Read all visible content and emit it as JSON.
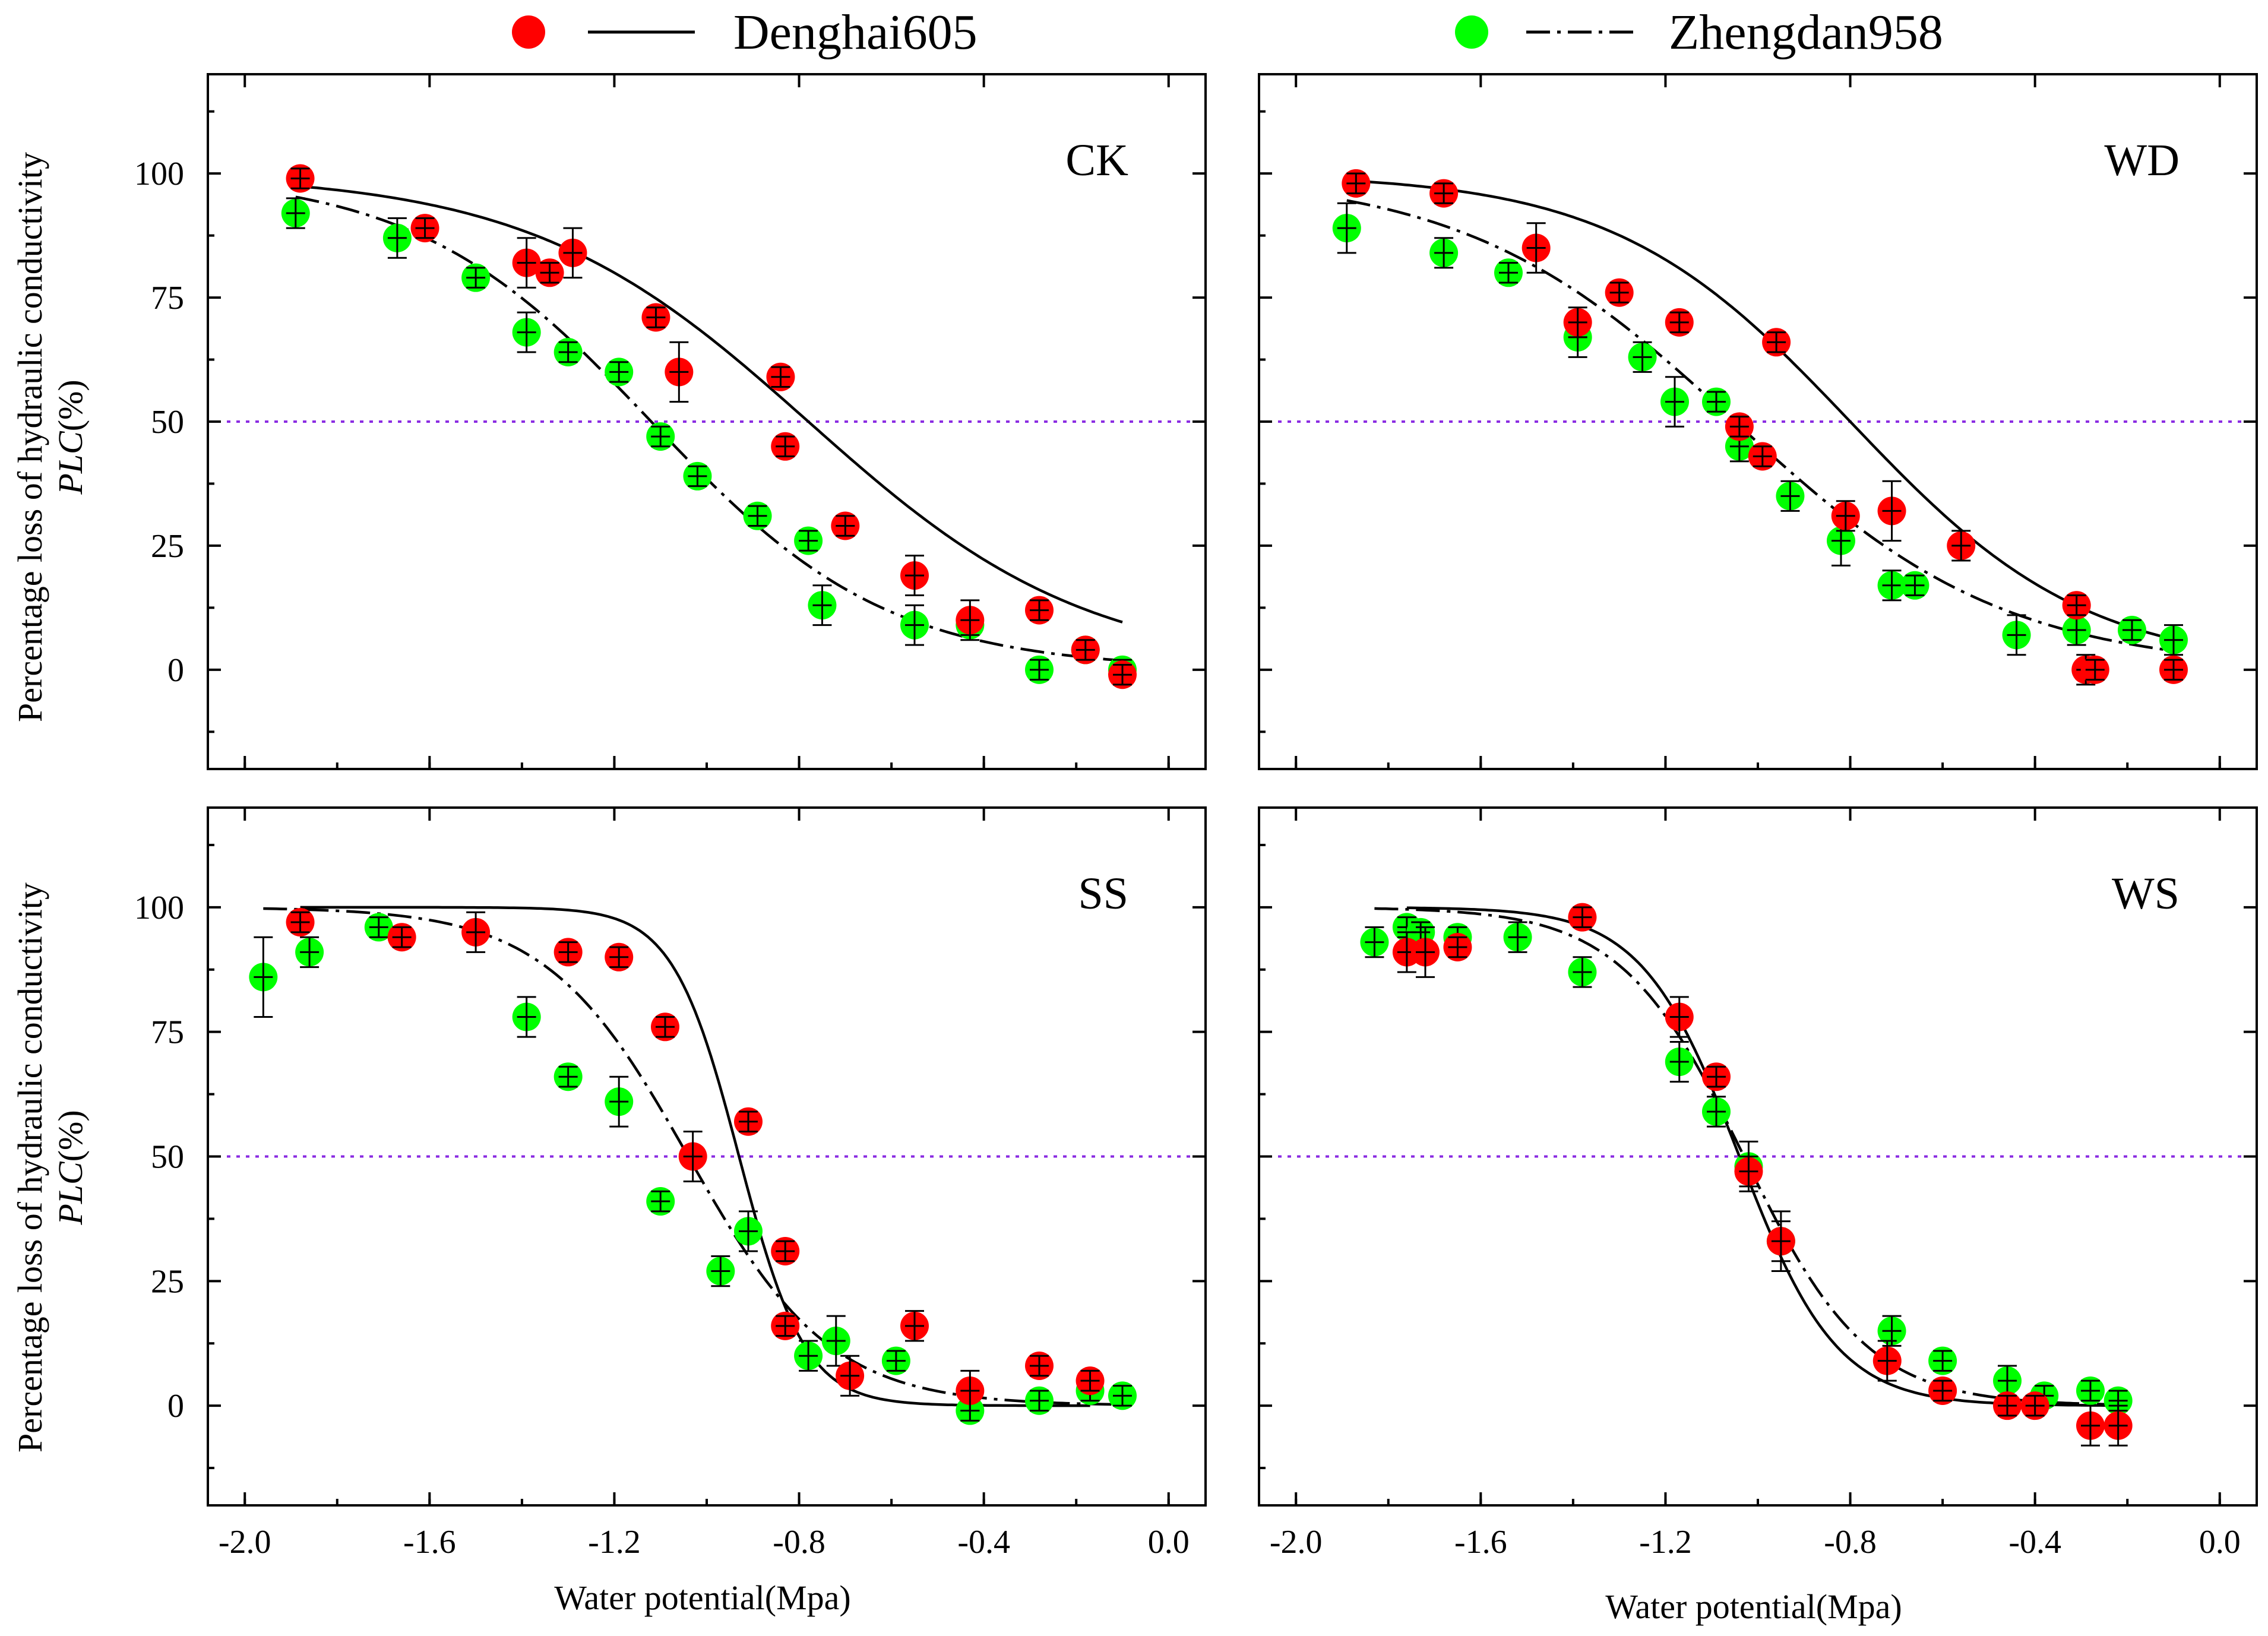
{
  "legend": {
    "series": [
      {
        "name": "Denghai605",
        "color": "#ff0000",
        "line": "solid"
      },
      {
        "name": "Zhengdan958",
        "color": "#00ff00",
        "line": "dashdot"
      }
    ]
  },
  "axes": {
    "xlabel": "Water potential(Mpa)",
    "ylabel": "Percentage loss of hydraulic conductivity",
    "ylabel_italic": "PLC",
    "ylabel_unit": "(%)"
  },
  "chart_data": [
    {
      "type": "scatter",
      "title": "CK",
      "xlim": [
        -2.08,
        0.08
      ],
      "ylim": [
        -20,
        120
      ],
      "xticks": [
        "-2.0",
        "-1.6",
        "-1.2",
        "-0.8",
        "-0.4",
        "0.0"
      ],
      "yticks": [
        "0",
        "25",
        "50",
        "75",
        "100"
      ],
      "reference_line_y": 50,
      "series": [
        {
          "name": "Denghai605",
          "color": "#ff0000",
          "fit": {
            "model": "sigmoid",
            "p50": -0.78,
            "a": 3.3
          },
          "points": [
            {
              "x": -1.88,
              "y": 99,
              "err": 2
            },
            {
              "x": -1.61,
              "y": 89,
              "err": 2
            },
            {
              "x": -1.39,
              "y": 82,
              "err": 5
            },
            {
              "x": -1.34,
              "y": 80,
              "err": 2
            },
            {
              "x": -1.29,
              "y": 84,
              "err": 5
            },
            {
              "x": -1.11,
              "y": 71,
              "err": 2
            },
            {
              "x": -1.06,
              "y": 60,
              "err": 6
            },
            {
              "x": -0.84,
              "y": 59,
              "err": 2
            },
            {
              "x": -0.83,
              "y": 45,
              "err": 2
            },
            {
              "x": -0.7,
              "y": 29,
              "err": 2
            },
            {
              "x": -0.55,
              "y": 19,
              "err": 4
            },
            {
              "x": -0.43,
              "y": 10,
              "err": 4
            },
            {
              "x": -0.28,
              "y": 12,
              "err": 2
            },
            {
              "x": -0.18,
              "y": 4,
              "err": 2
            },
            {
              "x": -0.1,
              "y": -1,
              "err": 2
            }
          ]
        },
        {
          "name": "Zhengdan958",
          "color": "#00ff00",
          "fit": {
            "model": "sigmoid",
            "p50": -1.12,
            "a": 3.9
          },
          "points": [
            {
              "x": -1.89,
              "y": 92,
              "err": 3
            },
            {
              "x": -1.67,
              "y": 87,
              "err": 4
            },
            {
              "x": -1.5,
              "y": 79,
              "err": 2
            },
            {
              "x": -1.39,
              "y": 68,
              "err": 4
            },
            {
              "x": -1.3,
              "y": 64,
              "err": 2
            },
            {
              "x": -1.19,
              "y": 60,
              "err": 2
            },
            {
              "x": -1.1,
              "y": 47,
              "err": 2
            },
            {
              "x": -1.02,
              "y": 39,
              "err": 2
            },
            {
              "x": -0.89,
              "y": 31,
              "err": 2
            },
            {
              "x": -0.78,
              "y": 26,
              "err": 2
            },
            {
              "x": -0.75,
              "y": 13,
              "err": 4
            },
            {
              "x": -0.55,
              "y": 9,
              "err": 4
            },
            {
              "x": -0.43,
              "y": 9,
              "err": 2
            },
            {
              "x": -0.28,
              "y": 0,
              "err": 2
            },
            {
              "x": -0.18,
              "y": 4,
              "err": 2
            },
            {
              "x": -0.1,
              "y": 0,
              "err": 2
            }
          ]
        }
      ]
    },
    {
      "type": "scatter",
      "title": "WD",
      "xlim": [
        -2.08,
        0.08
      ],
      "ylim": [
        -20,
        120
      ],
      "xticks": [
        "-2.0",
        "-1.6",
        "-1.2",
        "-0.8",
        "-0.4",
        "0.0"
      ],
      "yticks": [
        "0",
        "25",
        "50",
        "75",
        "100"
      ],
      "reference_line_y": 50,
      "series": [
        {
          "name": "Denghai605",
          "color": "#ff0000",
          "fit": {
            "model": "sigmoid",
            "p50": -0.8,
            "a": 3.9
          },
          "points": [
            {
              "x": -1.87,
              "y": 98,
              "err": 2
            },
            {
              "x": -1.68,
              "y": 96,
              "err": 2
            },
            {
              "x": -1.48,
              "y": 85,
              "err": 5
            },
            {
              "x": -1.39,
              "y": 70,
              "err": 3
            },
            {
              "x": -1.3,
              "y": 76,
              "err": 2
            },
            {
              "x": -1.17,
              "y": 70,
              "err": 2
            },
            {
              "x": -1.04,
              "y": 49,
              "err": 2
            },
            {
              "x": -0.99,
              "y": 43,
              "err": 2
            },
            {
              "x": -0.96,
              "y": 66,
              "err": 2
            },
            {
              "x": -0.81,
              "y": 31,
              "err": 3
            },
            {
              "x": -0.71,
              "y": 32,
              "err": 6
            },
            {
              "x": -0.56,
              "y": 25,
              "err": 3
            },
            {
              "x": -0.31,
              "y": 13,
              "err": 2
            },
            {
              "x": -0.29,
              "y": 0,
              "err": 3
            },
            {
              "x": -0.27,
              "y": 0,
              "err": 2
            },
            {
              "x": -0.1,
              "y": 0,
              "err": 2
            }
          ]
        },
        {
          "name": "Zhengdan958",
          "color": "#00ff00",
          "fit": {
            "model": "sigmoid",
            "p50": -1.05,
            "a": 3.4
          },
          "points": [
            {
              "x": -1.89,
              "y": 89,
              "err": 5
            },
            {
              "x": -1.68,
              "y": 84,
              "err": 3
            },
            {
              "x": -1.54,
              "y": 80,
              "err": 2
            },
            {
              "x": -1.39,
              "y": 67,
              "err": 4
            },
            {
              "x": -1.25,
              "y": 63,
              "err": 3
            },
            {
              "x": -1.18,
              "y": 54,
              "err": 5
            },
            {
              "x": -1.09,
              "y": 54,
              "err": 2
            },
            {
              "x": -1.04,
              "y": 45,
              "err": 3
            },
            {
              "x": -0.93,
              "y": 35,
              "err": 3
            },
            {
              "x": -0.82,
              "y": 26,
              "err": 5
            },
            {
              "x": -0.71,
              "y": 17,
              "err": 3
            },
            {
              "x": -0.66,
              "y": 17,
              "err": 2
            },
            {
              "x": -0.44,
              "y": 7,
              "err": 4
            },
            {
              "x": -0.31,
              "y": 8,
              "err": 3
            },
            {
              "x": -0.19,
              "y": 8,
              "err": 2
            },
            {
              "x": -0.1,
              "y": 6,
              "err": 3
            }
          ]
        }
      ]
    },
    {
      "type": "scatter",
      "title": "SS",
      "xlim": [
        -2.08,
        0.08
      ],
      "ylim": [
        -20,
        120
      ],
      "xticks": [
        "-2.0",
        "-1.6",
        "-1.2",
        "-0.8",
        "-0.4",
        "0.0"
      ],
      "yticks": [
        "0",
        "25",
        "50",
        "75",
        "100"
      ],
      "reference_line_y": 50,
      "series": [
        {
          "name": "Denghai605",
          "color": "#ff0000",
          "fit": {
            "model": "sigmoid",
            "p50": -0.93,
            "a": 14
          },
          "points": [
            {
              "x": -1.88,
              "y": 97,
              "err": 2
            },
            {
              "x": -1.66,
              "y": 94,
              "err": 2
            },
            {
              "x": -1.5,
              "y": 95,
              "err": 4
            },
            {
              "x": -1.3,
              "y": 91,
              "err": 2
            },
            {
              "x": -1.19,
              "y": 90,
              "err": 2
            },
            {
              "x": -1.09,
              "y": 76,
              "err": 2
            },
            {
              "x": -1.03,
              "y": 50,
              "err": 5
            },
            {
              "x": -0.91,
              "y": 57,
              "err": 2
            },
            {
              "x": -0.83,
              "y": 31,
              "err": 2
            },
            {
              "x": -0.83,
              "y": 16,
              "err": 2
            },
            {
              "x": -0.69,
              "y": 6,
              "err": 4
            },
            {
              "x": -0.55,
              "y": 16,
              "err": 3
            },
            {
              "x": -0.43,
              "y": 3,
              "err": 4
            },
            {
              "x": -0.28,
              "y": 8,
              "err": 2
            },
            {
              "x": -0.17,
              "y": 5,
              "err": 2
            }
          ]
        },
        {
          "name": "Zhengdan958",
          "color": "#00ff00",
          "fit": {
            "model": "sigmoid",
            "p50": -1.04,
            "a": 6.5
          },
          "points": [
            {
              "x": -1.96,
              "y": 86,
              "err": 8
            },
            {
              "x": -1.86,
              "y": 91,
              "err": 3
            },
            {
              "x": -1.71,
              "y": 96,
              "err": 2
            },
            {
              "x": -1.39,
              "y": 78,
              "err": 4
            },
            {
              "x": -1.3,
              "y": 66,
              "err": 2
            },
            {
              "x": -1.19,
              "y": 61,
              "err": 5
            },
            {
              "x": -1.1,
              "y": 41,
              "err": 2
            },
            {
              "x": -0.97,
              "y": 27,
              "err": 3
            },
            {
              "x": -0.91,
              "y": 35,
              "err": 4
            },
            {
              "x": -0.78,
              "y": 10,
              "err": 3
            },
            {
              "x": -0.72,
              "y": 13,
              "err": 5
            },
            {
              "x": -0.59,
              "y": 9,
              "err": 2
            },
            {
              "x": -0.43,
              "y": -1,
              "err": 2
            },
            {
              "x": -0.28,
              "y": 1,
              "err": 2
            },
            {
              "x": -0.17,
              "y": 3,
              "err": 2
            },
            {
              "x": -0.1,
              "y": 2,
              "err": 2
            }
          ]
        }
      ]
    },
    {
      "type": "scatter",
      "title": "WS",
      "xlim": [
        -2.08,
        0.08
      ],
      "ylim": [
        -20,
        120
      ],
      "xticks": [
        "-2.0",
        "-1.6",
        "-1.2",
        "-0.8",
        "-0.4",
        "0.0"
      ],
      "yticks": [
        "0",
        "25",
        "50",
        "75",
        "100"
      ],
      "reference_line_y": 50,
      "series": [
        {
          "name": "Denghai605",
          "color": "#ff0000",
          "fit": {
            "model": "sigmoid",
            "p50": -1.04,
            "a": 9.5
          },
          "points": [
            {
              "x": -1.76,
              "y": 91,
              "err": 4
            },
            {
              "x": -1.72,
              "y": 91,
              "err": 5
            },
            {
              "x": -1.65,
              "y": 92,
              "err": 2
            },
            {
              "x": -1.38,
              "y": 98,
              "err": 2
            },
            {
              "x": -1.17,
              "y": 78,
              "err": 4
            },
            {
              "x": -1.09,
              "y": 66,
              "err": 2
            },
            {
              "x": -1.02,
              "y": 47,
              "err": 3
            },
            {
              "x": -0.95,
              "y": 33,
              "err": 4
            },
            {
              "x": -0.72,
              "y": 9,
              "err": 4
            },
            {
              "x": -0.6,
              "y": 3,
              "err": 2
            },
            {
              "x": -0.46,
              "y": 0,
              "err": 2
            },
            {
              "x": -0.4,
              "y": 0,
              "err": 2
            },
            {
              "x": -0.28,
              "y": -4,
              "err": 4
            },
            {
              "x": -0.22,
              "y": -4,
              "err": 4
            }
          ]
        },
        {
          "name": "Zhengdan958",
          "color": "#00ff00",
          "fit": {
            "model": "sigmoid",
            "p50": -1.03,
            "a": 7.5
          },
          "points": [
            {
              "x": -1.83,
              "y": 93,
              "err": 3
            },
            {
              "x": -1.76,
              "y": 96,
              "err": 2
            },
            {
              "x": -1.73,
              "y": 95,
              "err": 2
            },
            {
              "x": -1.65,
              "y": 94,
              "err": 2
            },
            {
              "x": -1.52,
              "y": 94,
              "err": 3
            },
            {
              "x": -1.38,
              "y": 87,
              "err": 3
            },
            {
              "x": -1.17,
              "y": 69,
              "err": 4
            },
            {
              "x": -1.09,
              "y": 59,
              "err": 3
            },
            {
              "x": -1.02,
              "y": 48,
              "err": 5
            },
            {
              "x": -0.95,
              "y": 33,
              "err": 6
            },
            {
              "x": -0.71,
              "y": 15,
              "err": 3
            },
            {
              "x": -0.6,
              "y": 9,
              "err": 2
            },
            {
              "x": -0.46,
              "y": 5,
              "err": 3
            },
            {
              "x": -0.38,
              "y": 2,
              "err": 2
            },
            {
              "x": -0.28,
              "y": 3,
              "err": 2
            },
            {
              "x": -0.22,
              "y": 1,
              "err": 2
            }
          ]
        }
      ]
    }
  ]
}
